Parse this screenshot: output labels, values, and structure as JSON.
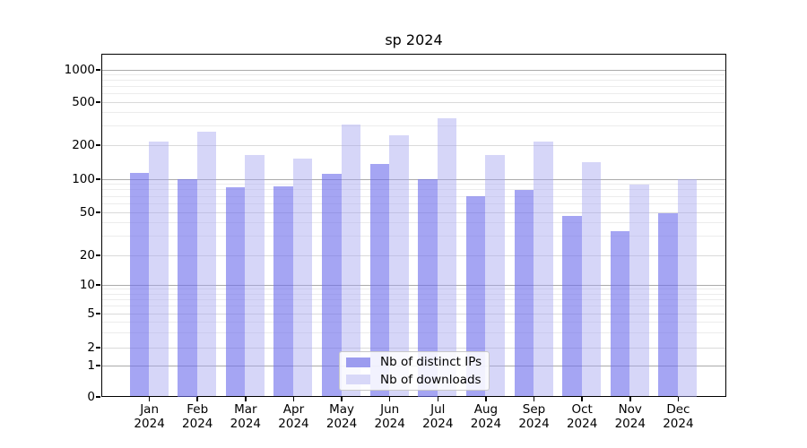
{
  "title": "sp 2024",
  "chart_data": {
    "type": "bar",
    "title": "sp 2024",
    "categories": [
      "Jan",
      "Feb",
      "Mar",
      "Apr",
      "May",
      "Jun",
      "Jul",
      "Aug",
      "Sep",
      "Oct",
      "Nov",
      "Dec"
    ],
    "category_year": "2024",
    "series": [
      {
        "name": "Nb of distinct IPs",
        "color": "rgba(110,110,235,0.62)",
        "legend_color": "#9c9cef",
        "values": [
          113,
          100,
          84,
          86,
          111,
          136,
          100,
          69,
          79,
          46,
          33,
          49
        ]
      },
      {
        "name": "Nb of downloads",
        "color": "rgba(165,165,240,0.46)",
        "legend_color": "#d8d8f8",
        "values": [
          214,
          265,
          163,
          152,
          310,
          246,
          354,
          162,
          213,
          140,
          89,
          100
        ]
      }
    ],
    "yticks": [
      0,
      1,
      2,
      5,
      10,
      20,
      50,
      100,
      200,
      500,
      1000
    ],
    "ylabel": "",
    "xlabel": "",
    "yscale": "symlog",
    "ylim": [
      0,
      1400
    ],
    "grid": true,
    "legend_position": "lower-center"
  },
  "legend": {
    "items": [
      "Nb of distinct IPs",
      "Nb of downloads"
    ]
  }
}
